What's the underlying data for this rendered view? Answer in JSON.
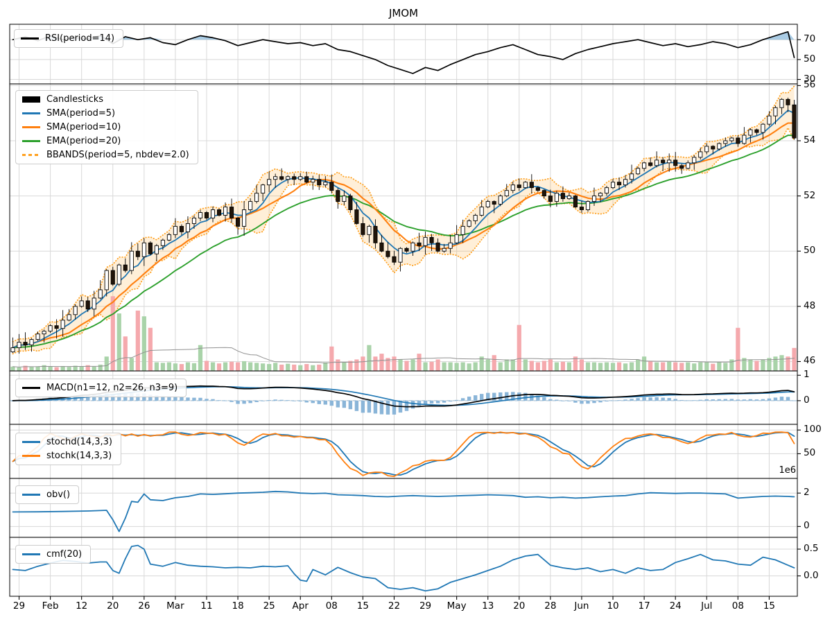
{
  "title": "JMOM",
  "x_axis": {
    "tick_labels": [
      "29",
      "Feb",
      "12",
      "20",
      "26",
      "Mar",
      "11",
      "18",
      "25",
      "Apr",
      "08",
      "15",
      "22",
      "29",
      "May",
      "13",
      "20",
      "28",
      "Jun",
      "10",
      "17",
      "24",
      "Jul",
      "08",
      "15"
    ]
  },
  "panels": {
    "rsi": {
      "legend": [
        "RSI(period=14)"
      ],
      "ytick_labels": [
        "70",
        "50",
        "30"
      ]
    },
    "price": {
      "legend": [
        "Candlesticks",
        "SMA(period=5)",
        "SMA(period=10)",
        "EMA(period=20)",
        "BBANDS(period=5, nbdev=2.0)"
      ],
      "ytick_labels": [
        "56",
        "54",
        "52",
        "50",
        "48",
        "46"
      ]
    },
    "macd": {
      "legend": [
        "MACD(n1=12, n2=26, n3=9)"
      ],
      "ytick_labels": [
        "1",
        "0"
      ]
    },
    "stoch": {
      "legend": [
        "stochd(14,3,3)",
        "stochk(14,3,3)"
      ],
      "ytick_labels": [
        "100",
        "50"
      ]
    },
    "obv": {
      "legend": [
        "obv()"
      ],
      "ytick_labels": [
        "2",
        "0"
      ],
      "scale_label": "1e6"
    },
    "cmf": {
      "legend": [
        "cmf(20)"
      ],
      "ytick_labels": [
        "0.5",
        "0.0"
      ]
    }
  },
  "chart_data": {
    "type": "candlestick-multi-panel",
    "n_days": 126,
    "closes": [
      46.5,
      46.7,
      46.6,
      46.8,
      47.0,
      47.1,
      47.3,
      47.2,
      47.5,
      47.7,
      48.0,
      48.2,
      47.9,
      48.3,
      48.6,
      49.3,
      48.8,
      49.5,
      49.3,
      50.0,
      49.8,
      50.3,
      49.9,
      50.2,
      50.4,
      50.6,
      50.9,
      50.7,
      51.0,
      51.2,
      51.4,
      51.2,
      51.5,
      51.3,
      51.6,
      51.2,
      50.9,
      51.5,
      51.8,
      52.1,
      52.4,
      52.6,
      52.7,
      52.6,
      52.7,
      52.6,
      52.7,
      52.5,
      52.6,
      52.4,
      52.5,
      52.2,
      51.8,
      52.0,
      51.5,
      51.0,
      50.6,
      50.9,
      50.3,
      50.0,
      49.8,
      49.6,
      50.1,
      50.0,
      50.3,
      50.2,
      50.5,
      50.3,
      50.0,
      50.1,
      50.3,
      50.6,
      50.9,
      51.1,
      51.3,
      51.6,
      51.8,
      51.7,
      52.0,
      52.2,
      52.4,
      52.3,
      52.5,
      52.3,
      52.2,
      52.0,
      51.8,
      52.1,
      51.9,
      52.0,
      51.6,
      51.5,
      51.8,
      52.0,
      52.1,
      52.3,
      52.5,
      52.4,
      52.6,
      52.8,
      53.0,
      53.2,
      53.1,
      53.3,
      53.2,
      53.3,
      53.1,
      53.0,
      53.2,
      53.4,
      53.6,
      53.8,
      53.7,
      53.9,
      54.0,
      54.1,
      53.9,
      54.2,
      54.4,
      54.3,
      54.6,
      54.9,
      55.2,
      55.5,
      55.3,
      54.1
    ],
    "volumes_millions": [
      0.15,
      0.12,
      0.18,
      0.14,
      0.16,
      0.2,
      0.15,
      0.13,
      0.17,
      0.14,
      0.18,
      0.16,
      0.2,
      0.15,
      0.22,
      0.5,
      2.6,
      2.0,
      1.2,
      0.45,
      2.1,
      1.9,
      1.5,
      0.3,
      0.28,
      0.3,
      0.26,
      0.24,
      0.3,
      0.27,
      0.9,
      0.35,
      0.3,
      0.26,
      0.3,
      0.32,
      0.3,
      0.34,
      0.3,
      0.28,
      0.26,
      0.24,
      0.28,
      0.22,
      0.25,
      0.22,
      0.2,
      0.24,
      0.2,
      0.22,
      0.3,
      0.85,
      0.4,
      0.3,
      0.35,
      0.4,
      0.5,
      0.9,
      0.5,
      0.6,
      0.45,
      0.5,
      0.4,
      0.35,
      0.4,
      0.6,
      0.3,
      0.32,
      0.4,
      0.3,
      0.3,
      0.28,
      0.3,
      0.26,
      0.3,
      0.5,
      0.4,
      0.55,
      0.3,
      0.4,
      0.4,
      1.6,
      0.4,
      0.35,
      0.3,
      0.35,
      0.4,
      0.3,
      0.32,
      0.3,
      0.5,
      0.4,
      0.3,
      0.3,
      0.28,
      0.3,
      0.28,
      0.3,
      0.26,
      0.3,
      0.4,
      0.5,
      0.35,
      0.3,
      0.3,
      0.32,
      0.3,
      0.28,
      0.3,
      0.26,
      0.3,
      0.3,
      0.25,
      0.3,
      0.28,
      0.4,
      1.5,
      0.45,
      0.4,
      0.35,
      0.4,
      0.45,
      0.5,
      0.55,
      0.5,
      0.8
    ],
    "indicators_derived_from_ohlcv": [
      "SMA(5)",
      "SMA(10)",
      "EMA(20)",
      "BBANDS(5,2.0)",
      "MACD(12,26,9)",
      "STOCH(14,3,3)",
      "VolumeSMA(20)"
    ],
    "rsi": {
      "x": [
        0,
        2,
        4,
        6,
        8,
        10,
        12,
        14,
        16,
        18,
        20,
        22,
        24,
        26,
        28,
        30,
        32,
        34,
        36,
        38,
        40,
        42,
        44,
        46,
        48,
        50,
        52,
        54,
        56,
        58,
        60,
        62,
        64,
        66,
        68,
        70,
        72,
        74,
        76,
        78,
        80,
        82,
        84,
        86,
        88,
        90,
        92,
        94,
        96,
        98,
        100,
        102,
        104,
        106,
        108,
        110,
        112,
        114,
        116,
        118,
        120,
        122,
        124,
        125
      ],
      "y": [
        70,
        73,
        69,
        74,
        70,
        72,
        71,
        74,
        66,
        73,
        70,
        72,
        67,
        65,
        70,
        74,
        72,
        69,
        64,
        67,
        70,
        68,
        66,
        67,
        64,
        66,
        60,
        58,
        54,
        50,
        44,
        40,
        36,
        42,
        39,
        45,
        50,
        55,
        58,
        62,
        65,
        60,
        55,
        53,
        50,
        56,
        60,
        63,
        66,
        68,
        70,
        67,
        64,
        66,
        63,
        65,
        68,
        66,
        62,
        65,
        70,
        74,
        78,
        52
      ]
    },
    "obv_millions": {
      "x": [
        0,
        4,
        8,
        12,
        15,
        16,
        17,
        18,
        19,
        20,
        21,
        22,
        24,
        26,
        28,
        30,
        32,
        34,
        36,
        38,
        40,
        42,
        44,
        46,
        48,
        50,
        52,
        54,
        56,
        58,
        60,
        62,
        64,
        66,
        68,
        70,
        72,
        74,
        76,
        78,
        80,
        82,
        84,
        86,
        88,
        90,
        92,
        94,
        96,
        98,
        100,
        102,
        104,
        106,
        108,
        110,
        112,
        114,
        116,
        118,
        120,
        122,
        124,
        125
      ],
      "y": [
        0.87,
        0.88,
        0.9,
        0.93,
        0.97,
        0.4,
        -0.3,
        0.5,
        1.5,
        1.45,
        1.95,
        1.6,
        1.55,
        1.72,
        1.8,
        1.95,
        1.92,
        1.96,
        2.0,
        2.02,
        2.05,
        2.1,
        2.07,
        2.0,
        1.97,
        1.99,
        1.9,
        1.88,
        1.85,
        1.8,
        1.78,
        1.82,
        1.85,
        1.82,
        1.8,
        1.82,
        1.85,
        1.87,
        1.9,
        1.88,
        1.85,
        1.75,
        1.78,
        1.72,
        1.75,
        1.7,
        1.73,
        1.78,
        1.82,
        1.85,
        1.95,
        2.02,
        2.0,
        1.98,
        2.0,
        2.0,
        1.98,
        1.95,
        1.7,
        1.75,
        1.8,
        1.82,
        1.8,
        1.78
      ]
    },
    "cmf": {
      "x": [
        0,
        2,
        4,
        6,
        8,
        10,
        12,
        14,
        15,
        16,
        17,
        18,
        19,
        20,
        21,
        22,
        24,
        26,
        28,
        30,
        32,
        34,
        36,
        38,
        40,
        42,
        44,
        45,
        46,
        47,
        48,
        50,
        52,
        54,
        56,
        58,
        60,
        62,
        64,
        66,
        68,
        70,
        72,
        74,
        76,
        78,
        80,
        82,
        84,
        86,
        88,
        90,
        92,
        94,
        96,
        98,
        100,
        102,
        104,
        106,
        108,
        110,
        112,
        114,
        116,
        118,
        120,
        122,
        124,
        125
      ],
      "y": [
        0.12,
        0.1,
        0.18,
        0.24,
        0.29,
        0.27,
        0.24,
        0.26,
        0.26,
        0.1,
        0.05,
        0.32,
        0.55,
        0.57,
        0.5,
        0.22,
        0.18,
        0.25,
        0.2,
        0.18,
        0.17,
        0.15,
        0.16,
        0.15,
        0.18,
        0.17,
        0.19,
        0.04,
        -0.08,
        -0.1,
        0.12,
        0.02,
        0.16,
        0.06,
        -0.02,
        -0.05,
        -0.22,
        -0.25,
        -0.22,
        -0.28,
        -0.24,
        -0.12,
        -0.05,
        0.02,
        0.1,
        0.18,
        0.3,
        0.37,
        0.4,
        0.2,
        0.15,
        0.12,
        0.15,
        0.08,
        0.12,
        0.05,
        0.15,
        0.1,
        0.12,
        0.25,
        0.32,
        0.4,
        0.3,
        0.28,
        0.22,
        0.2,
        0.35,
        0.3,
        0.2,
        0.15
      ]
    },
    "ylims": {
      "rsi": [
        25.5,
        85.5
      ],
      "price": [
        45.66,
        56.06
      ],
      "macd": [
        -0.93,
        1.17
      ],
      "stoch": [
        -2,
        112
      ],
      "obv": [
        -0.65,
        2.88
      ],
      "cmf": [
        -0.38,
        0.72
      ]
    },
    "colors": {
      "up_candle": "#ffffff",
      "down_candle": "#201409",
      "candle_edge": "#000000",
      "sma5": "#1f77b4",
      "sma10": "#ff7f0e",
      "ema20": "#2ca02c",
      "bband": "#ffa01e",
      "bband_fill": "rgba(255,167,38,0.18)",
      "vol_up": "#a9d3a9",
      "vol_down": "#f5a9ad",
      "vol_ma": "#909090",
      "macd_line": "#000000",
      "macd_signal": "#1f77b4",
      "macd_hist": "#8ab5d8",
      "macd_zero": "#a8c4da",
      "rsi_line": "#000000",
      "rsi_fill": "#8dbbdc",
      "stochd": "#1f77b4",
      "stochk": "#ff7f0e",
      "obv": "#1f77b4",
      "cmf": "#1f77b4",
      "grid": "#d8d8d8",
      "border": "#141414"
    }
  }
}
